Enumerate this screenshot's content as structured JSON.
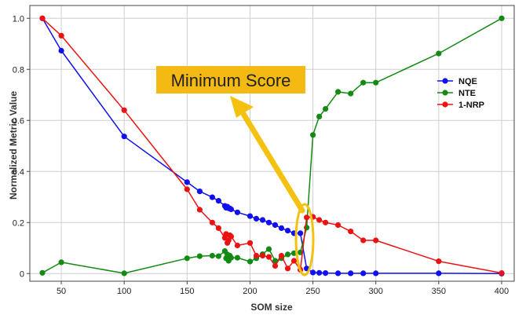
{
  "chart_data": {
    "type": "line",
    "title": "",
    "xlabel": "SOM size",
    "ylabel": "Normalized Metric Value",
    "xlim": [
      25,
      410
    ],
    "ylim": [
      -0.03,
      1.05
    ],
    "xticks": [
      50,
      100,
      150,
      200,
      250,
      300,
      350,
      400
    ],
    "yticks": [
      0,
      0.2,
      0.4,
      0.6,
      0.8,
      1.0
    ],
    "ytick_labels": [
      "0",
      "0.2",
      "0.4",
      "0.6",
      "0.8",
      "1.0"
    ],
    "grid": true,
    "legend_position": "top-right",
    "series": [
      {
        "name": "NQE",
        "color": "#1010f0",
        "x": [
          35,
          50,
          100,
          150,
          160,
          170,
          175,
          180,
          181,
          182,
          183,
          184,
          185,
          190,
          200,
          205,
          210,
          215,
          220,
          225,
          230,
          235,
          240,
          245,
          250,
          255,
          260,
          270,
          280,
          290,
          300,
          350,
          400
        ],
        "y": [
          1.0,
          0.873,
          0.537,
          0.358,
          0.322,
          0.299,
          0.285,
          0.265,
          0.258,
          0.262,
          0.256,
          0.255,
          0.252,
          0.24,
          0.225,
          0.215,
          0.21,
          0.2,
          0.19,
          0.178,
          0.168,
          0.158,
          0.158,
          0.02,
          0.004,
          0.003,
          0.002,
          0.001,
          0.001,
          0.001,
          0.001,
          0.001,
          0.0
        ]
      },
      {
        "name": "NTE",
        "color": "#138a13",
        "x": [
          35,
          50,
          100,
          150,
          160,
          170,
          175,
          180,
          181,
          182,
          183,
          184,
          185,
          190,
          200,
          205,
          210,
          215,
          220,
          225,
          230,
          235,
          240,
          245,
          250,
          255,
          260,
          270,
          280,
          290,
          300,
          350,
          400
        ],
        "y": [
          0.003,
          0.044,
          0.001,
          0.06,
          0.068,
          0.07,
          0.068,
          0.088,
          0.06,
          0.075,
          0.05,
          0.07,
          0.062,
          0.062,
          0.047,
          0.06,
          0.076,
          0.096,
          0.05,
          0.06,
          0.075,
          0.08,
          0.083,
          0.18,
          0.543,
          0.615,
          0.645,
          0.712,
          0.705,
          0.748,
          0.748,
          0.862,
          1.0
        ]
      },
      {
        "name": "1-NRP",
        "color": "#ee1111",
        "x": [
          35,
          50,
          100,
          150,
          160,
          170,
          175,
          180,
          181,
          182,
          183,
          184,
          185,
          190,
          200,
          205,
          210,
          215,
          220,
          225,
          230,
          235,
          240,
          245,
          250,
          255,
          260,
          270,
          280,
          290,
          300,
          350,
          400
        ],
        "y": [
          1.0,
          0.932,
          0.64,
          0.33,
          0.25,
          0.2,
          0.178,
          0.14,
          0.155,
          0.12,
          0.13,
          0.15,
          0.145,
          0.11,
          0.12,
          0.07,
          0.07,
          0.065,
          0.03,
          0.07,
          0.02,
          0.05,
          0.015,
          0.22,
          0.222,
          0.21,
          0.2,
          0.19,
          0.165,
          0.13,
          0.13,
          0.048,
          0.002
        ]
      }
    ],
    "annotations": [
      {
        "text": "Minimum Score",
        "box_color": "#f5b914",
        "arrow_color": "#f5c10f",
        "ellipse_color": "#f5c10f"
      }
    ]
  }
}
